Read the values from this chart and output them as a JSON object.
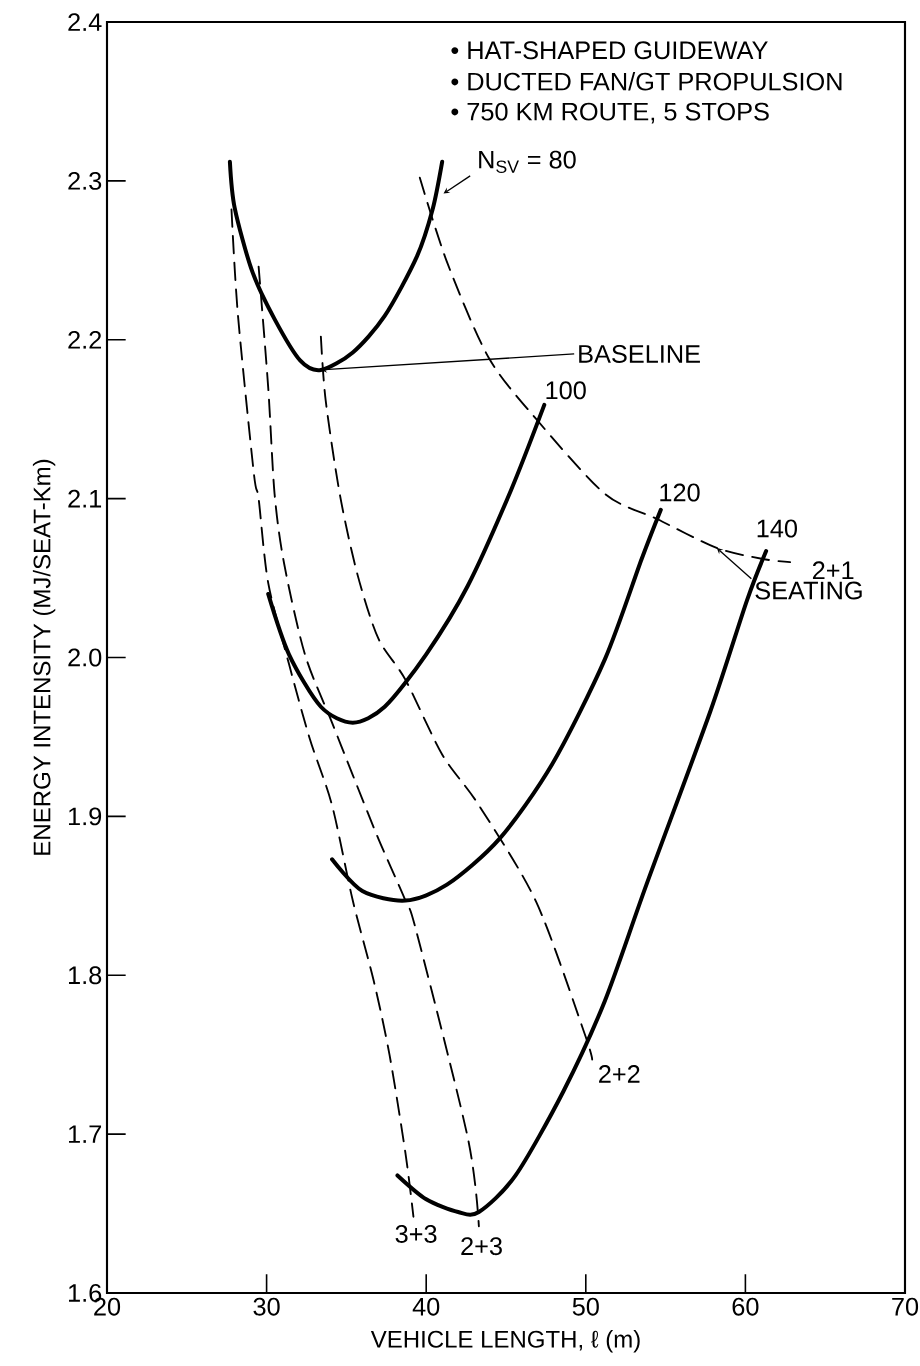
{
  "chart_data": {
    "type": "line",
    "xlabel": "VEHICLE LENGTH, ℓ (m)",
    "ylabel": "ENERGY INTENSITY (MJ/SEAT-Km)",
    "xlim": [
      20,
      70
    ],
    "xticks": [
      20,
      30,
      40,
      50,
      60,
      70
    ],
    "ylim": [
      1.6,
      2.4
    ],
    "yticks": [
      1.6,
      1.7,
      1.8,
      1.9,
      {
        "value": 2,
        "label": "2.0"
      },
      2.1,
      2.2,
      2.3,
      2.4
    ],
    "grid": false,
    "legend": false,
    "marker": "none",
    "annotations": [
      "• HAT-SHAPED GUIDEWAY",
      "• DUCTED FAN/GT PROPULSION",
      "• 750 KM ROUTE, 5 STOPS",
      {
        "text": "BASELINE",
        "x": 33.4,
        "y": 2.181
      },
      {
        "text": "SEATING",
        "x": 58.2,
        "y": 2.069
      }
    ],
    "series": [
      {
        "name": "N$_{SV}$ = 80",
        "color": "#000000",
        "line_style": "solid",
        "x": [
          27.7,
          28.0,
          29.1,
          30.5,
          32.1,
          33.4,
          35.4,
          37.4,
          39.4,
          40.4,
          41.0
        ],
        "values": [
          2.312,
          2.283,
          2.243,
          2.213,
          2.187,
          2.181,
          2.192,
          2.215,
          2.252,
          2.282,
          2.312
        ]
      },
      {
        "name": "100",
        "color": "#000000",
        "line_style": "solid",
        "x": [
          30.1,
          31.4,
          33.4,
          35.4,
          37.4,
          40.0,
          42.6,
          45.3,
          47.4
        ],
        "values": [
          2.04,
          2.002,
          1.969,
          1.959,
          1.969,
          2.002,
          2.045,
          2.105,
          2.159
        ]
      },
      {
        "name": "120",
        "color": "#000000",
        "line_style": "solid",
        "x": [
          34.1,
          36.0,
          38.7,
          41.3,
          44.6,
          47.9,
          51.2,
          53.5,
          54.7
        ],
        "values": [
          1.873,
          1.853,
          1.847,
          1.857,
          1.886,
          1.933,
          1.999,
          2.062,
          2.093
        ]
      },
      {
        "name": "140",
        "color": "#000000",
        "line_style": "solid",
        "x": [
          38.2,
          40.0,
          42.0,
          43.3,
          45.6,
          48.6,
          51.2,
          53.8,
          57.8,
          60.1,
          61.3
        ],
        "values": [
          1.674,
          1.659,
          1.651,
          1.651,
          1.674,
          1.727,
          1.784,
          1.857,
          1.966,
          2.036,
          2.067
        ]
      },
      {
        "name": "2+1",
        "color": "#000000",
        "line_style": "dashed",
        "x": [
          39.6,
          41.3,
          43.9,
          46.9,
          51.2,
          54.5,
          58.2,
          61.1,
          62.8
        ],
        "values": [
          2.302,
          2.249,
          2.189,
          2.15,
          2.103,
          2.087,
          2.069,
          2.062,
          2.06
        ]
      },
      {
        "name": "2+2",
        "color": "#000000",
        "line_style": "dashed",
        "x": [
          33.4,
          33.7,
          34.6,
          35.7,
          37.0,
          38.7,
          41.0,
          43.3,
          46.9,
          49.9,
          50.4
        ],
        "values": [
          2.202,
          2.162,
          2.102,
          2.052,
          2.012,
          1.986,
          1.939,
          1.907,
          1.846,
          1.764,
          1.747
        ]
      },
      {
        "name": "2+3",
        "color": "#000000",
        "line_style": "dashed",
        "x": [
          29.5,
          30.1,
          30.5,
          31.1,
          32.4,
          34.1,
          35.4,
          37.0,
          38.7,
          39.4,
          42.6,
          43.3
        ],
        "values": [
          2.246,
          2.17,
          2.103,
          2.059,
          2.002,
          1.959,
          1.926,
          1.886,
          1.847,
          1.827,
          1.698,
          1.642
        ]
      },
      {
        "name": "3+3",
        "color": "#000000",
        "line_style": "dashed",
        "x": [
          27.8,
          28.2,
          29.2,
          29.5,
          30.1,
          31.4,
          32.7,
          34.1,
          35.4,
          36.7,
          37.7,
          38.7,
          39.2
        ],
        "values": [
          2.282,
          2.216,
          2.116,
          2.1,
          2.047,
          1.996,
          1.949,
          1.907,
          1.847,
          1.797,
          1.75,
          1.688,
          1.648
        ]
      }
    ]
  }
}
